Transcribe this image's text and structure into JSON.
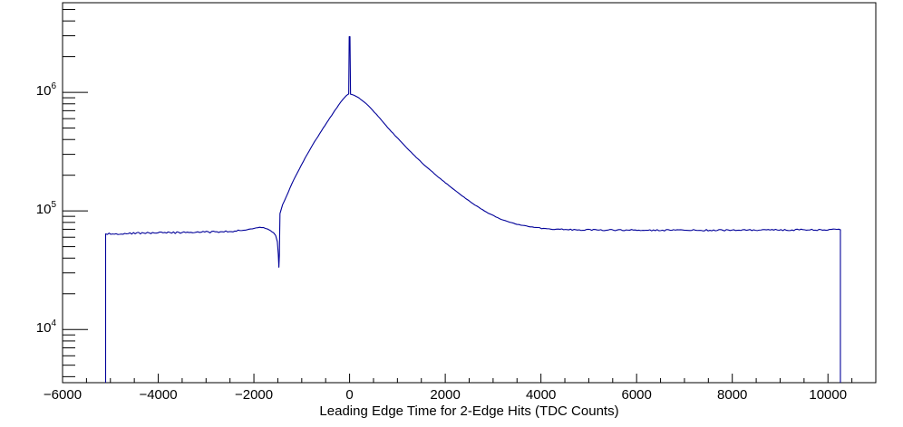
{
  "chart_data": {
    "type": "line",
    "title": "",
    "xlabel": "Leading Edge Time for 2-Edge Hits (TDC Counts)",
    "ylabel": "",
    "y_scale": "log",
    "grid": false,
    "legend": null,
    "x_range": [
      -6000,
      11000
    ],
    "y_range": [
      3560,
      5700000
    ],
    "x_major_ticks": [
      -6000,
      -4000,
      -2000,
      0,
      2000,
      4000,
      6000,
      8000,
      10000
    ],
    "x_tick_labels": [
      "−6000",
      "−4000",
      "−2000",
      "0",
      "2000",
      "4000",
      "6000",
      "8000",
      "10000"
    ],
    "x_minor_tick_step": 500,
    "y_major_tick_exponents": [
      4,
      5,
      6
    ],
    "y_tick_labels": [
      {
        "base": "10",
        "exp": "4"
      },
      {
        "base": "10",
        "exp": "5"
      },
      {
        "base": "10",
        "exp": "6"
      }
    ],
    "line_color": "#000099",
    "frame_color": "#000000",
    "background_color": "#ffffff",
    "data_domain": {
      "left_edge": -5100,
      "right_edge": 10260
    },
    "noise_regions": [
      {
        "from": -5100,
        "to": -2300,
        "amp": 1.0
      },
      {
        "from": 3900,
        "to": 10260,
        "amp": 0.8
      }
    ],
    "base_noise_amp": 0.25,
    "series": [
      {
        "name": "leading-edge-time-histogram",
        "points": [
          [
            -5100,
            64000
          ],
          [
            -4700,
            64600
          ],
          [
            -4300,
            65000
          ],
          [
            -3900,
            65300
          ],
          [
            -3500,
            65700
          ],
          [
            -3100,
            66100
          ],
          [
            -2700,
            66700
          ],
          [
            -2400,
            67600
          ],
          [
            -2150,
            69200
          ],
          [
            -1990,
            71300
          ],
          [
            -1880,
            72800
          ],
          [
            -1800,
            72400
          ],
          [
            -1720,
            70500
          ],
          [
            -1650,
            68000
          ],
          [
            -1590,
            65500
          ],
          [
            -1545,
            62000
          ],
          [
            -1510,
            55000
          ],
          [
            -1490,
            43000
          ],
          [
            -1478,
            33500
          ],
          [
            -1468,
            42000
          ],
          [
            -1460,
            70000
          ],
          [
            -1455,
            95000
          ],
          [
            -1400,
            113000
          ],
          [
            -1330,
            130000
          ],
          [
            -1240,
            158000
          ],
          [
            -1130,
            196000
          ],
          [
            -1010,
            243000
          ],
          [
            -890,
            298000
          ],
          [
            -760,
            368000
          ],
          [
            -620,
            452000
          ],
          [
            -480,
            553000
          ],
          [
            -340,
            672000
          ],
          [
            -230,
            780000
          ],
          [
            -140,
            872000
          ],
          [
            -80,
            928000
          ],
          [
            -40,
            958000
          ],
          [
            -18,
            968000
          ],
          [
            -8,
            2950000
          ],
          [
            8,
            2950000
          ],
          [
            20,
            965000
          ],
          [
            90,
            945000
          ],
          [
            200,
            895000
          ],
          [
            350,
            800000
          ],
          [
            480,
            708000
          ],
          [
            640,
            600000
          ],
          [
            800,
            502000
          ],
          [
            980,
            420000
          ],
          [
            1160,
            352000
          ],
          [
            1360,
            292000
          ],
          [
            1580,
            240000
          ],
          [
            1820,
            198000
          ],
          [
            2080,
            163000
          ],
          [
            2350,
            134000
          ],
          [
            2620,
            112000
          ],
          [
            2900,
            95500
          ],
          [
            3180,
            84500
          ],
          [
            3460,
            77800
          ],
          [
            3740,
            73800
          ],
          [
            4050,
            71300
          ],
          [
            4400,
            70000
          ],
          [
            4800,
            69300
          ],
          [
            5400,
            68900
          ],
          [
            6200,
            68700
          ],
          [
            7000,
            68700
          ],
          [
            7800,
            68800
          ],
          [
            8600,
            69000
          ],
          [
            9400,
            69200
          ],
          [
            10260,
            69400
          ]
        ]
      }
    ]
  }
}
